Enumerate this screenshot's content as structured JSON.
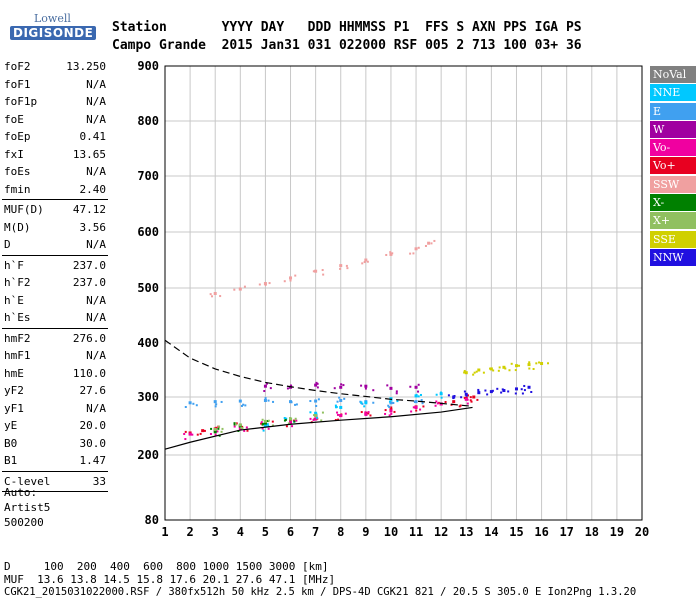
{
  "logo": {
    "line1": "Lowell",
    "line2": "DIGISONDE"
  },
  "header": {
    "line1": "Station       YYYY DAY   DDD HHMMSS P1  FFS S AXN PPS IGA PS",
    "line2": "Campo Grande  2015 Jan31 031 022000 RSF 005 2 713 100 03+ 36"
  },
  "params": [
    {
      "label": "foF2",
      "value": "13.250"
    },
    {
      "label": "foF1",
      "value": "N/A"
    },
    {
      "label": "foF1p",
      "value": "N/A"
    },
    {
      "label": "foE",
      "value": "N/A"
    },
    {
      "label": "foEp",
      "value": "0.41"
    },
    {
      "label": "fxI",
      "value": "13.65"
    },
    {
      "label": "foEs",
      "value": "N/A"
    },
    {
      "label": "fmin",
      "value": "2.40"
    },
    {
      "sep": true
    },
    {
      "label": "MUF(D)",
      "value": "47.12"
    },
    {
      "label": "M(D)",
      "value": "3.56"
    },
    {
      "label": "D",
      "value": "N/A"
    },
    {
      "sep": true
    },
    {
      "label": "h`F",
      "value": "237.0"
    },
    {
      "label": "h`F2",
      "value": "237.0"
    },
    {
      "label": "h`E",
      "value": "N/A"
    },
    {
      "label": "h`Es",
      "value": "N/A"
    },
    {
      "sep": true
    },
    {
      "label": "hmF2",
      "value": "276.0"
    },
    {
      "label": "hmF1",
      "value": "N/A"
    },
    {
      "label": "hmE",
      "value": "110.0"
    },
    {
      "label": "yF2",
      "value": "27.6"
    },
    {
      "label": "yF1",
      "value": "N/A"
    },
    {
      "label": "yE",
      "value": "20.0"
    },
    {
      "label": "B0",
      "value": "30.0"
    },
    {
      "label": "B1",
      "value": "1.47"
    },
    {
      "sep": true
    },
    {
      "label": "C-level",
      "value": "33"
    },
    {
      "sep": true
    }
  ],
  "auto": [
    "Auto:",
    "Artist5",
    "500200"
  ],
  "legend": [
    {
      "label": "NoVal",
      "color": "#808080"
    },
    {
      "label": "NNE",
      "color": "#00c8ff"
    },
    {
      "label": "E",
      "color": "#40a0f0"
    },
    {
      "label": "W",
      "color": "#a000a0"
    },
    {
      "label": "Vo-",
      "color": "#f000a0"
    },
    {
      "label": "Vo+",
      "color": "#e80020"
    },
    {
      "label": "SSW",
      "color": "#f0a0a0"
    },
    {
      "label": "X-",
      "color": "#008000"
    },
    {
      "label": "X+",
      "color": "#90c060"
    },
    {
      "label": "SSE",
      "color": "#d0d000"
    },
    {
      "label": "NNW",
      "color": "#2010e0"
    }
  ],
  "footer": {
    "line1": "D     100  200  400  600  800 1000 1500 3000 [km]",
    "line2": "MUF  13.6 13.8 14.5 15.8 17.6 20.1 27.6 47.1 [MHz]",
    "line3": "CGK21_2015031022000.RSF / 380fx512h 50 kHz 2.5 km / DPS-4D CGK21 821 / 20.5 S 305.0 E Ion2Png 1.3.20"
  },
  "chart_data": {
    "type": "scatter",
    "xlabel": "",
    "ylabel": "",
    "xlim": [
      1,
      20
    ],
    "ylim": [
      80,
      900
    ],
    "x_ticks": [
      "1",
      "2",
      "3",
      "4",
      "5",
      "6",
      "7",
      "8",
      "9",
      "10",
      "11",
      "12",
      "13",
      "14",
      "15",
      "16",
      "17",
      "18",
      "19",
      "20"
    ],
    "y_ticks": [
      "80",
      "200",
      "300",
      "400",
      "500",
      "600",
      "700",
      "800",
      "900"
    ],
    "y_tick_values": [
      80,
      200,
      300,
      400,
      500,
      600,
      700,
      800,
      900
    ],
    "grid": true,
    "legend_position": "right",
    "trace_profile": {
      "x": [
        1.0,
        2.0,
        4.0,
        6.0,
        8.0,
        10.0,
        12.0,
        13.25
      ],
      "y": [
        210,
        222,
        243,
        253,
        260,
        266,
        274,
        282
      ]
    },
    "dashed_profile": {
      "x": [
        1.0,
        2.0,
        3.0,
        4.0,
        5.0,
        6.0,
        7.0,
        8.0,
        9.0,
        10.0,
        11.0,
        12.0,
        13.25
      ],
      "y": [
        405,
        372,
        352,
        338,
        327,
        319,
        312,
        306,
        301,
        296,
        293,
        289,
        284
      ]
    },
    "series": [
      {
        "name": "Vo+",
        "x": [
          2.0,
          2.5,
          3.0,
          4.0,
          5.0,
          6.0,
          7.0,
          8.0,
          9.0,
          10.0,
          11.0,
          12.0,
          12.5,
          13.0,
          13.3
        ],
        "y": [
          238,
          242,
          245,
          250,
          255,
          258,
          262,
          268,
          272,
          278,
          283,
          288,
          292,
          298,
          300
        ]
      },
      {
        "name": "Vo-",
        "x": [
          2.0,
          3.0,
          4.0,
          5.0,
          6.0,
          7.0,
          8.0,
          9.0,
          10.0,
          11.0,
          12.0,
          13.0
        ],
        "y": [
          236,
          242,
          246,
          252,
          256,
          262,
          268,
          270,
          276,
          282,
          288,
          296
        ]
      },
      {
        "name": "E",
        "x": [
          2.0,
          3.0,
          4.0,
          5.0,
          6.0,
          7.0,
          8.0,
          9.0,
          10.0,
          11.0
        ],
        "y": [
          290,
          292,
          293,
          294,
          292,
          293,
          294,
          292,
          290,
          292
        ]
      },
      {
        "name": "NNW",
        "x": [
          12.5,
          13.0,
          13.5,
          14.0,
          14.5,
          15.0,
          15.5
        ],
        "y": [
          300,
          305,
          308,
          310,
          312,
          315,
          318
        ]
      },
      {
        "name": "SSE",
        "x": [
          13.0,
          13.5,
          14.0,
          14.5,
          15.0,
          15.5,
          16.0
        ],
        "y": [
          345,
          350,
          352,
          355,
          358,
          360,
          362
        ]
      },
      {
        "name": "W",
        "x": [
          5.0,
          6.0,
          7.0,
          8.0,
          9.0,
          10.0,
          11.0
        ],
        "y": [
          320,
          318,
          322,
          318,
          320,
          316,
          318
        ]
      },
      {
        "name": "NNE",
        "x": [
          5.0,
          6.0,
          7.0,
          8.0,
          9.0,
          10.0,
          11.0,
          12.0
        ],
        "y": [
          250,
          262,
          272,
          282,
          290,
          297,
          302,
          306
        ]
      },
      {
        "name": "SSW",
        "x": [
          3.0,
          4.0,
          5.0,
          6.0,
          7.0,
          8.0,
          9.0,
          10.0,
          11.0,
          11.5
        ],
        "y": [
          490,
          498,
          508,
          518,
          530,
          540,
          550,
          560,
          570,
          580
        ]
      },
      {
        "name": "X-",
        "x": [
          3.0,
          4.0,
          5.0,
          6.0
        ],
        "y": [
          240,
          250,
          255,
          262
        ]
      },
      {
        "name": "X+",
        "x": [
          3.0,
          4.0,
          5.0,
          6.0,
          7.0
        ],
        "y": [
          244,
          252,
          258,
          262,
          268
        ]
      }
    ]
  }
}
